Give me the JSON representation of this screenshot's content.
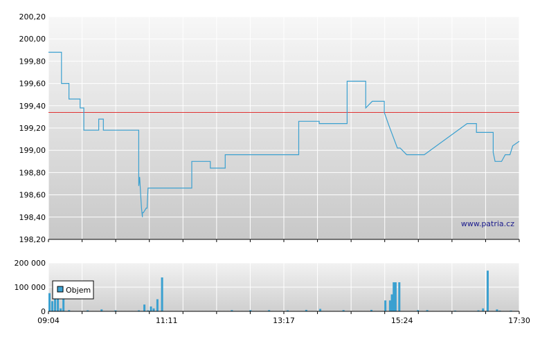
{
  "chart_data": [
    {
      "type": "line",
      "title": "",
      "xlabel": "",
      "ylabel": "",
      "ylim": [
        198.2,
        200.2
      ],
      "y_ticks": [
        "200,20",
        "200,00",
        "199,80",
        "199,60",
        "199,40",
        "199,20",
        "199,00",
        "198,80",
        "198,60",
        "198,40",
        "198,20"
      ],
      "y_tick_values": [
        200.2,
        200.0,
        199.8,
        199.6,
        199.4,
        199.2,
        199.0,
        198.8,
        198.6,
        198.4,
        198.2
      ],
      "grid": true,
      "x_range": [
        "09:04",
        "17:30"
      ],
      "reference_line": 199.34,
      "reference_line_color": "#e03030",
      "series_color": "#3aa0d0",
      "watermark": "www.patria.cz",
      "series": [
        {
          "x": [
            "09:04",
            "09:18",
            "09:18",
            "09:26",
            "09:26",
            "09:38",
            "09:38",
            "09:42",
            "09:42",
            "09:58",
            "09:58",
            "10:03",
            "10:03",
            "10:41",
            "10:41",
            "10:42",
            "10:43",
            "10:43",
            "10:44",
            "10:44",
            "10:45",
            "10:45",
            "10:46",
            "10:49",
            "10:50",
            "10:51",
            "10:51",
            "10:53",
            "10:53",
            "10:57",
            "10:57",
            "11:11",
            "11:11",
            "11:38",
            "11:38",
            "11:58",
            "11:58",
            "12:14",
            "12:14",
            "12:44",
            "12:44",
            "12:49",
            "12:49",
            "13:33",
            "13:33",
            "13:55",
            "13:55",
            "14:10",
            "14:10",
            "14:25",
            "14:25",
            "14:38",
            "14:40",
            "14:45",
            "14:45",
            "14:52",
            "15:05",
            "15:05",
            "15:10",
            "15:10",
            "15:19",
            "15:22",
            "15:29",
            "15:29",
            "15:48",
            "15:48",
            "16:34",
            "16:38",
            "16:38",
            "16:44",
            "16:44",
            "17:02",
            "17:02",
            "17:04",
            "17:11",
            "17:15",
            "17:20",
            "17:23",
            "17:30"
          ],
          "values": [
            199.88,
            199.88,
            199.6,
            199.6,
            199.46,
            199.46,
            199.38,
            199.38,
            199.18,
            199.18,
            199.28,
            199.28,
            199.18,
            199.18,
            198.68,
            198.76,
            198.62,
            198.62,
            198.48,
            198.48,
            198.4,
            198.44,
            198.44,
            198.48,
            198.48,
            198.66,
            198.66,
            198.66,
            198.66,
            198.66,
            198.66,
            198.66,
            198.66,
            198.66,
            198.9,
            198.9,
            198.84,
            198.84,
            198.96,
            198.96,
            198.96,
            198.96,
            198.96,
            198.96,
            199.26,
            199.26,
            199.24,
            199.24,
            199.24,
            199.24,
            199.62,
            199.62,
            199.62,
            199.62,
            199.38,
            199.44,
            199.44,
            199.34,
            199.22,
            199.22,
            199.02,
            199.02,
            198.96,
            198.96,
            198.96,
            198.96,
            199.24,
            199.24,
            199.24,
            199.24,
            199.16,
            199.16,
            198.98,
            198.9,
            198.9,
            198.96,
            198.96,
            199.04,
            199.08
          ]
        }
      ]
    },
    {
      "type": "bar",
      "title": "",
      "xlabel": "",
      "ylabel": "",
      "ylim": [
        0,
        200000
      ],
      "y_ticks": [
        "200 000",
        "100 000",
        "0"
      ],
      "y_tick_values": [
        200000,
        100000,
        0
      ],
      "x_ticks": [
        "09:04",
        "11:11",
        "13:17",
        "15:24",
        "17:30"
      ],
      "grid": true,
      "legend": "top-left",
      "series_color": "#3aa0d0",
      "series": [
        {
          "name": "Objem",
          "x": [
            "09:04",
            "09:07",
            "09:10",
            "09:13",
            "09:16",
            "09:19",
            "09:25",
            "09:45",
            "10:00",
            "10:15",
            "10:40",
            "10:46",
            "10:50",
            "10:53",
            "10:56",
            "11:00",
            "11:05",
            "12:20",
            "12:40",
            "13:00",
            "13:20",
            "13:40",
            "13:55",
            "14:20",
            "14:50",
            "15:05",
            "15:10",
            "15:12",
            "15:14",
            "15:16",
            "15:20",
            "15:40",
            "15:50",
            "16:20",
            "16:45",
            "16:50",
            "16:55",
            "17:05",
            "17:08",
            "17:20"
          ],
          "values": [
            75000,
            42000,
            75000,
            75000,
            12000,
            75000,
            5000,
            4000,
            8000,
            4000,
            4000,
            28000,
            4000,
            20000,
            12000,
            50000,
            140000,
            5000,
            5000,
            5000,
            4000,
            6000,
            10000,
            5000,
            6000,
            45000,
            45000,
            70000,
            120000,
            120000,
            120000,
            5000,
            5000,
            3000,
            4000,
            12000,
            168000,
            8000,
            3000,
            3000
          ]
        }
      ]
    }
  ]
}
